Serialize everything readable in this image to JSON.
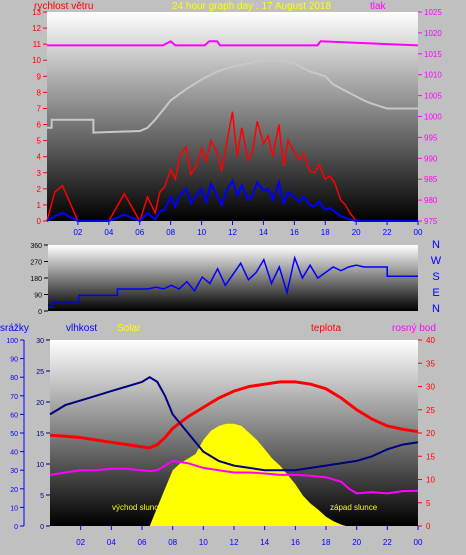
{
  "colors": {
    "frame_bg": "#c0c0c0",
    "wind_speed": "#ff0000",
    "wind_gust": "#ff0000",
    "wind_avg": "#0000ff",
    "pressure": "#ff00ff",
    "outdoor_gray": "#c8c8c8",
    "direction": "#0000ff",
    "rain": "#0000ff",
    "humidity": "#000080",
    "solar": "#ffff00",
    "temp": "#ff0000",
    "dew": "#ff00ff",
    "axis_left_top": "#ff0000",
    "axis_right_top": "#ff00ff",
    "axis_text": "#0000ff",
    "title_color": "#ffff00"
  },
  "hour_ticks": [
    "02",
    "04",
    "06",
    "08",
    "10",
    "12",
    "14",
    "16",
    "18",
    "20",
    "22",
    "00"
  ],
  "chart_data": [
    {
      "type": "line",
      "title": "24 hour graph day : 17 August 2018",
      "labels": {
        "left": "rychlost větru",
        "right": "tlak"
      },
      "y_left": {
        "range": [
          0,
          13
        ],
        "ticks": [
          "0",
          "1",
          "2",
          "3",
          "4",
          "5",
          "6",
          "7",
          "8",
          "9",
          "10",
          "11",
          "12",
          "13"
        ]
      },
      "y_right": {
        "range": [
          975,
          1025
        ],
        "ticks": [
          "975",
          "980",
          "985",
          "990",
          "995",
          "1000",
          "1005",
          "1010",
          "1015",
          "1020",
          "1025"
        ]
      },
      "series": [
        {
          "name": "tlak",
          "axis": "right",
          "x": [
            0,
            7.5,
            8.0,
            8.3,
            10.2,
            10.5,
            11.0,
            11.2,
            17.5,
            17.7,
            24
          ],
          "y": [
            1017,
            1017,
            1018,
            1017,
            1017,
            1018,
            1018,
            1017,
            1017,
            1018,
            1017
          ]
        },
        {
          "axis": "left",
          "x": [
            0,
            0.3,
            0.3,
            3.0,
            3.0,
            6.0,
            6.5,
            7.0,
            8.0,
            9.0,
            10.0,
            11.0,
            12.0,
            13.0,
            14.0,
            15.0,
            16.0,
            17.0,
            18.0,
            18.5,
            19.5,
            20.5,
            21.0,
            22.0,
            23.0,
            24.0
          ],
          "y": [
            5.8,
            5.8,
            6.3,
            6.3,
            5.5,
            5.6,
            5.8,
            6.3,
            7.5,
            8.2,
            8.8,
            9.3,
            9.6,
            9.8,
            10.0,
            10.0,
            9.8,
            9.3,
            9.0,
            8.5,
            8.0,
            7.5,
            7.3,
            7.0,
            7.0,
            7.0
          ]
        },
        {
          "axis": "left",
          "x": [
            0,
            0.5,
            1,
            2,
            3,
            4,
            5,
            6,
            6.5,
            7,
            7.3,
            7.6,
            8,
            8.3,
            8.6,
            9,
            9.3,
            9.6,
            10,
            10.3,
            10.6,
            11,
            11.3,
            11.6,
            12,
            12.3,
            12.6,
            13,
            13.3,
            13.6,
            14,
            14.3,
            14.6,
            15,
            15.3,
            15.6,
            16,
            16.3,
            16.6,
            17,
            17.3,
            17.6,
            18,
            18.3,
            18.6,
            19,
            19.3,
            19.6,
            20,
            21,
            22,
            23,
            24
          ],
          "y": [
            0,
            1.8,
            2.2,
            0,
            0,
            0,
            1.7,
            0,
            1.5,
            0.5,
            1.8,
            2.1,
            3.2,
            2.6,
            4.1,
            4.6,
            2.9,
            3.3,
            4.5,
            3.7,
            5.0,
            4.3,
            3.1,
            4.7,
            6.8,
            4.0,
            5.8,
            3.8,
            4.3,
            6.2,
            4.8,
            5.3,
            4.0,
            6.0,
            3.4,
            5.0,
            4.3,
            3.8,
            4.2,
            3.1,
            3.0,
            3.5,
            2.6,
            2.8,
            2.4,
            1.3,
            1.0,
            0.5,
            0,
            0,
            0,
            0,
            0
          ]
        },
        {
          "axis": "left",
          "x": [
            0,
            0.5,
            1,
            2,
            3,
            4,
            5,
            6,
            6.5,
            7,
            7.3,
            7.6,
            8,
            8.3,
            8.6,
            9,
            9.3,
            9.6,
            10,
            10.3,
            10.6,
            11,
            11.3,
            11.6,
            12,
            12.3,
            12.6,
            13,
            13.3,
            13.6,
            14,
            14.3,
            14.6,
            15,
            15.3,
            15.6,
            16,
            16.3,
            16.6,
            17,
            17.3,
            17.6,
            18,
            18.3,
            18.6,
            19,
            19.3,
            19.6,
            20,
            21,
            22,
            23,
            24
          ],
          "y": [
            0,
            0.3,
            0.5,
            0,
            0,
            0,
            0.4,
            0,
            0.5,
            0.1,
            0.6,
            0.7,
            1.5,
            0.9,
            1.6,
            2.0,
            1.1,
            1.5,
            2.0,
            1.2,
            2.3,
            1.6,
            1.0,
            1.9,
            2.5,
            1.6,
            2.2,
            1.3,
            1.6,
            2.4,
            1.9,
            2.0,
            1.3,
            2.4,
            1.1,
            1.8,
            1.5,
            1.2,
            1.5,
            1.0,
            0.9,
            1.2,
            0.7,
            0.8,
            0.6,
            0.3,
            0.2,
            0.1,
            0,
            0,
            0,
            0,
            0
          ]
        }
      ]
    },
    {
      "type": "line",
      "labels": {
        "right": [
          "N",
          "W",
          "S",
          "E",
          "N"
        ]
      },
      "y_left": {
        "range": [
          0,
          360
        ],
        "ticks": [
          "0",
          "90",
          "180",
          "270",
          "360"
        ]
      },
      "series": [
        {
          "x": [
            0,
            0.3,
            0.3,
            2.0,
            2.0,
            4.5,
            4.5,
            6.5,
            7.0,
            7.5,
            8.0,
            8.5,
            9.0,
            9.5,
            10.0,
            10.5,
            11.0,
            11.5,
            12.0,
            12.5,
            13.0,
            13.5,
            14.0,
            14.5,
            15.0,
            15.5,
            16.0,
            16.5,
            17.0,
            17.5,
            18.0,
            18.5,
            19.0,
            19.5,
            20.0,
            20.5,
            21.0,
            22.0,
            22.0,
            24.0
          ],
          "y": [
            20,
            20,
            50,
            50,
            85,
            85,
            120,
            120,
            130,
            120,
            140,
            120,
            160,
            110,
            185,
            150,
            230,
            140,
            200,
            260,
            170,
            210,
            280,
            150,
            240,
            100,
            290,
            180,
            250,
            180,
            210,
            240,
            220,
            240,
            250,
            240,
            240,
            240,
            190,
            190
          ]
        }
      ]
    },
    {
      "type": "line",
      "labels": {
        "rain": "srážky",
        "humidity": "vlhkost",
        "solar": "Solar",
        "temp": "teplota",
        "dew": "rosný bod"
      },
      "annotations": [
        "východ slunce",
        "západ slunce"
      ],
      "y_rain": {
        "range": [
          0,
          100
        ],
        "ticks": [
          "0",
          "10",
          "20",
          "30",
          "40",
          "50",
          "60",
          "70",
          "80",
          "90",
          "100"
        ]
      },
      "y_humidity": {
        "range": [
          0,
          30
        ],
        "ticks": [
          "0",
          "5",
          "10",
          "15",
          "20",
          "25",
          "30"
        ]
      },
      "y_right": {
        "range": [
          0,
          40
        ],
        "ticks": [
          "0",
          "5",
          "10",
          "15",
          "20",
          "25",
          "30",
          "35",
          "40"
        ]
      },
      "series": [
        {
          "name": "vlhkost",
          "axis": "right",
          "x": [
            0,
            1,
            2,
            3,
            4,
            5,
            6,
            6.5,
            7,
            7.5,
            8,
            9,
            10,
            11,
            12,
            13,
            14,
            15,
            16,
            17,
            18,
            19,
            20,
            21,
            22,
            23,
            24
          ],
          "y": [
            24,
            26,
            27,
            28,
            29,
            30,
            31,
            32,
            31,
            28,
            24,
            20,
            16,
            14,
            13,
            12.5,
            12,
            12,
            12,
            12.5,
            13,
            13.5,
            14,
            15,
            16.5,
            17.5,
            18
          ]
        },
        {
          "name": "teplota",
          "axis": "right",
          "x": [
            0,
            1,
            2,
            3,
            4,
            5,
            6,
            6.5,
            7,
            7.5,
            8,
            9,
            10,
            11,
            12,
            13,
            14,
            15,
            16,
            17,
            18,
            19,
            20,
            21,
            22,
            23,
            24
          ],
          "y": [
            19.5,
            19.3,
            19.0,
            18.5,
            18.0,
            17.5,
            17.0,
            16.8,
            17.5,
            19.0,
            21.0,
            23.5,
            25.5,
            27.5,
            29.0,
            30.0,
            30.5,
            31.0,
            31.0,
            30.5,
            29.5,
            27.5,
            25.0,
            23.0,
            21.5,
            20.8,
            20.3
          ]
        },
        {
          "name": "rosný bod",
          "axis": "right",
          "x": [
            0,
            1,
            2,
            3,
            4,
            5,
            6,
            6.5,
            7,
            7.5,
            8,
            9,
            10,
            11,
            12,
            13,
            14,
            15,
            16,
            17,
            18,
            19,
            19.5,
            20,
            21,
            22,
            23,
            24
          ],
          "y": [
            11.0,
            11.5,
            12.0,
            12.0,
            12.3,
            12.3,
            12.0,
            11.8,
            12.0,
            13.0,
            14.0,
            13.5,
            12.5,
            12.0,
            11.5,
            11.5,
            11.3,
            11.0,
            11.0,
            10.8,
            10.5,
            9.5,
            8.0,
            7.0,
            7.3,
            7.0,
            7.5,
            7.6
          ]
        },
        {
          "name": "Solar",
          "type": "area",
          "x": [
            6.5,
            7.0,
            7.5,
            8.0,
            8.5,
            9.0,
            9.5,
            10.0,
            10.5,
            11.0,
            11.5,
            12.0,
            12.5,
            13.0,
            13.5,
            14.0,
            14.5,
            15.0,
            15.5,
            16.0,
            16.5,
            17.0,
            17.5,
            18.0,
            18.5,
            19.0,
            19.3
          ],
          "y": [
            0,
            4,
            8,
            12,
            13.5,
            14.5,
            15.5,
            18.5,
            20.5,
            21.5,
            22.0,
            22.0,
            21.5,
            20.0,
            18.5,
            16.5,
            14.5,
            13.0,
            11.0,
            9.0,
            6.5,
            4.8,
            3.5,
            2.0,
            1.0,
            0.3,
            0
          ]
        }
      ]
    }
  ]
}
